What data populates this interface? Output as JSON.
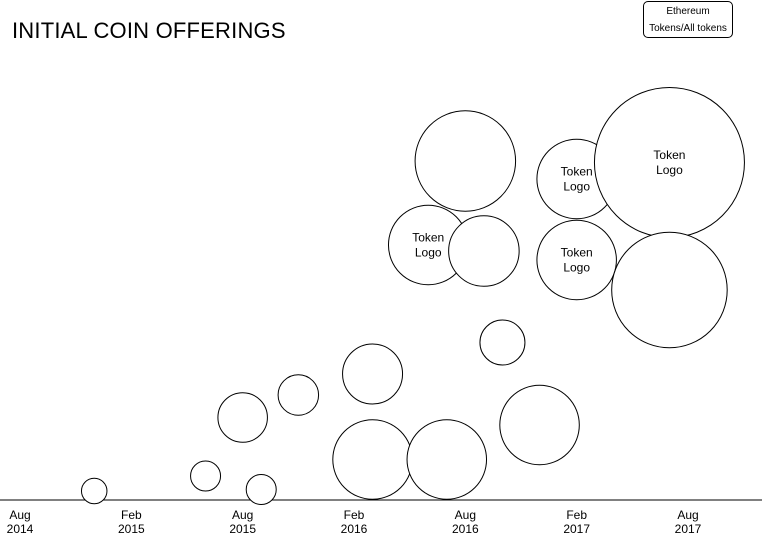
{
  "header": {
    "title": "INITIAL COIN OFFERINGS"
  },
  "toggle": {
    "line1": "Ethereum",
    "line2": "Tokens/All tokens"
  },
  "colors": {
    "stroke": "#000000",
    "fill": "#ffffff",
    "text": "#000000"
  },
  "chart_data": {
    "type": "scatter",
    "title": "INITIAL COIN OFFERINGS",
    "xlabel": "",
    "ylabel": "",
    "grid": false,
    "xlim": [
      "2014-08",
      "2017-08"
    ],
    "x_ticks": [
      {
        "line1": "Aug",
        "line2": "2014",
        "date": "2014-08"
      },
      {
        "line1": "Feb",
        "line2": "2015",
        "date": "2015-02"
      },
      {
        "line1": "Aug",
        "line2": "2015",
        "date": "2015-08"
      },
      {
        "line1": "Feb",
        "line2": "2016",
        "date": "2016-02"
      },
      {
        "line1": "Aug",
        "line2": "2016",
        "date": "2016-08"
      },
      {
        "line1": "Feb",
        "line2": "2017",
        "date": "2017-02"
      },
      {
        "line1": "Aug",
        "line2": "2017",
        "date": "2017-08"
      }
    ],
    "points": [
      {
        "date": "2014-12",
        "y": 0.06,
        "size": 0.17,
        "label": ""
      },
      {
        "date": "2015-06",
        "y": 0.16,
        "size": 0.2,
        "label": ""
      },
      {
        "date": "2015-08",
        "y": 0.55,
        "size": 0.33,
        "label": ""
      },
      {
        "date": "2015-09",
        "y": 0.07,
        "size": 0.2,
        "label": ""
      },
      {
        "date": "2015-11",
        "y": 0.7,
        "size": 0.27,
        "label": ""
      },
      {
        "date": "2016-03",
        "y": 0.27,
        "size": 0.53,
        "label": ""
      },
      {
        "date": "2016-03",
        "y": 0.84,
        "size": 0.4,
        "label": ""
      },
      {
        "date": "2016-06",
        "y": 1.7,
        "size": 0.53,
        "label": "Token Logo"
      },
      {
        "date": "2016-07",
        "y": 0.27,
        "size": 0.53,
        "label": ""
      },
      {
        "date": "2016-08",
        "y": 2.26,
        "size": 0.67,
        "label": ""
      },
      {
        "date": "2016-09",
        "y": 1.66,
        "size": 0.47,
        "label": ""
      },
      {
        "date": "2016-10",
        "y": 1.05,
        "size": 0.3,
        "label": ""
      },
      {
        "date": "2016-12",
        "y": 0.5,
        "size": 0.53,
        "label": ""
      },
      {
        "date": "2017-02",
        "y": 2.14,
        "size": 0.53,
        "label": "Token Logo"
      },
      {
        "date": "2017-02",
        "y": 1.6,
        "size": 0.53,
        "label": "Token Logo"
      },
      {
        "date": "2017-07",
        "y": 2.25,
        "size": 1.0,
        "label": "Token Logo"
      },
      {
        "date": "2017-07",
        "y": 1.4,
        "size": 0.77,
        "label": ""
      }
    ]
  }
}
